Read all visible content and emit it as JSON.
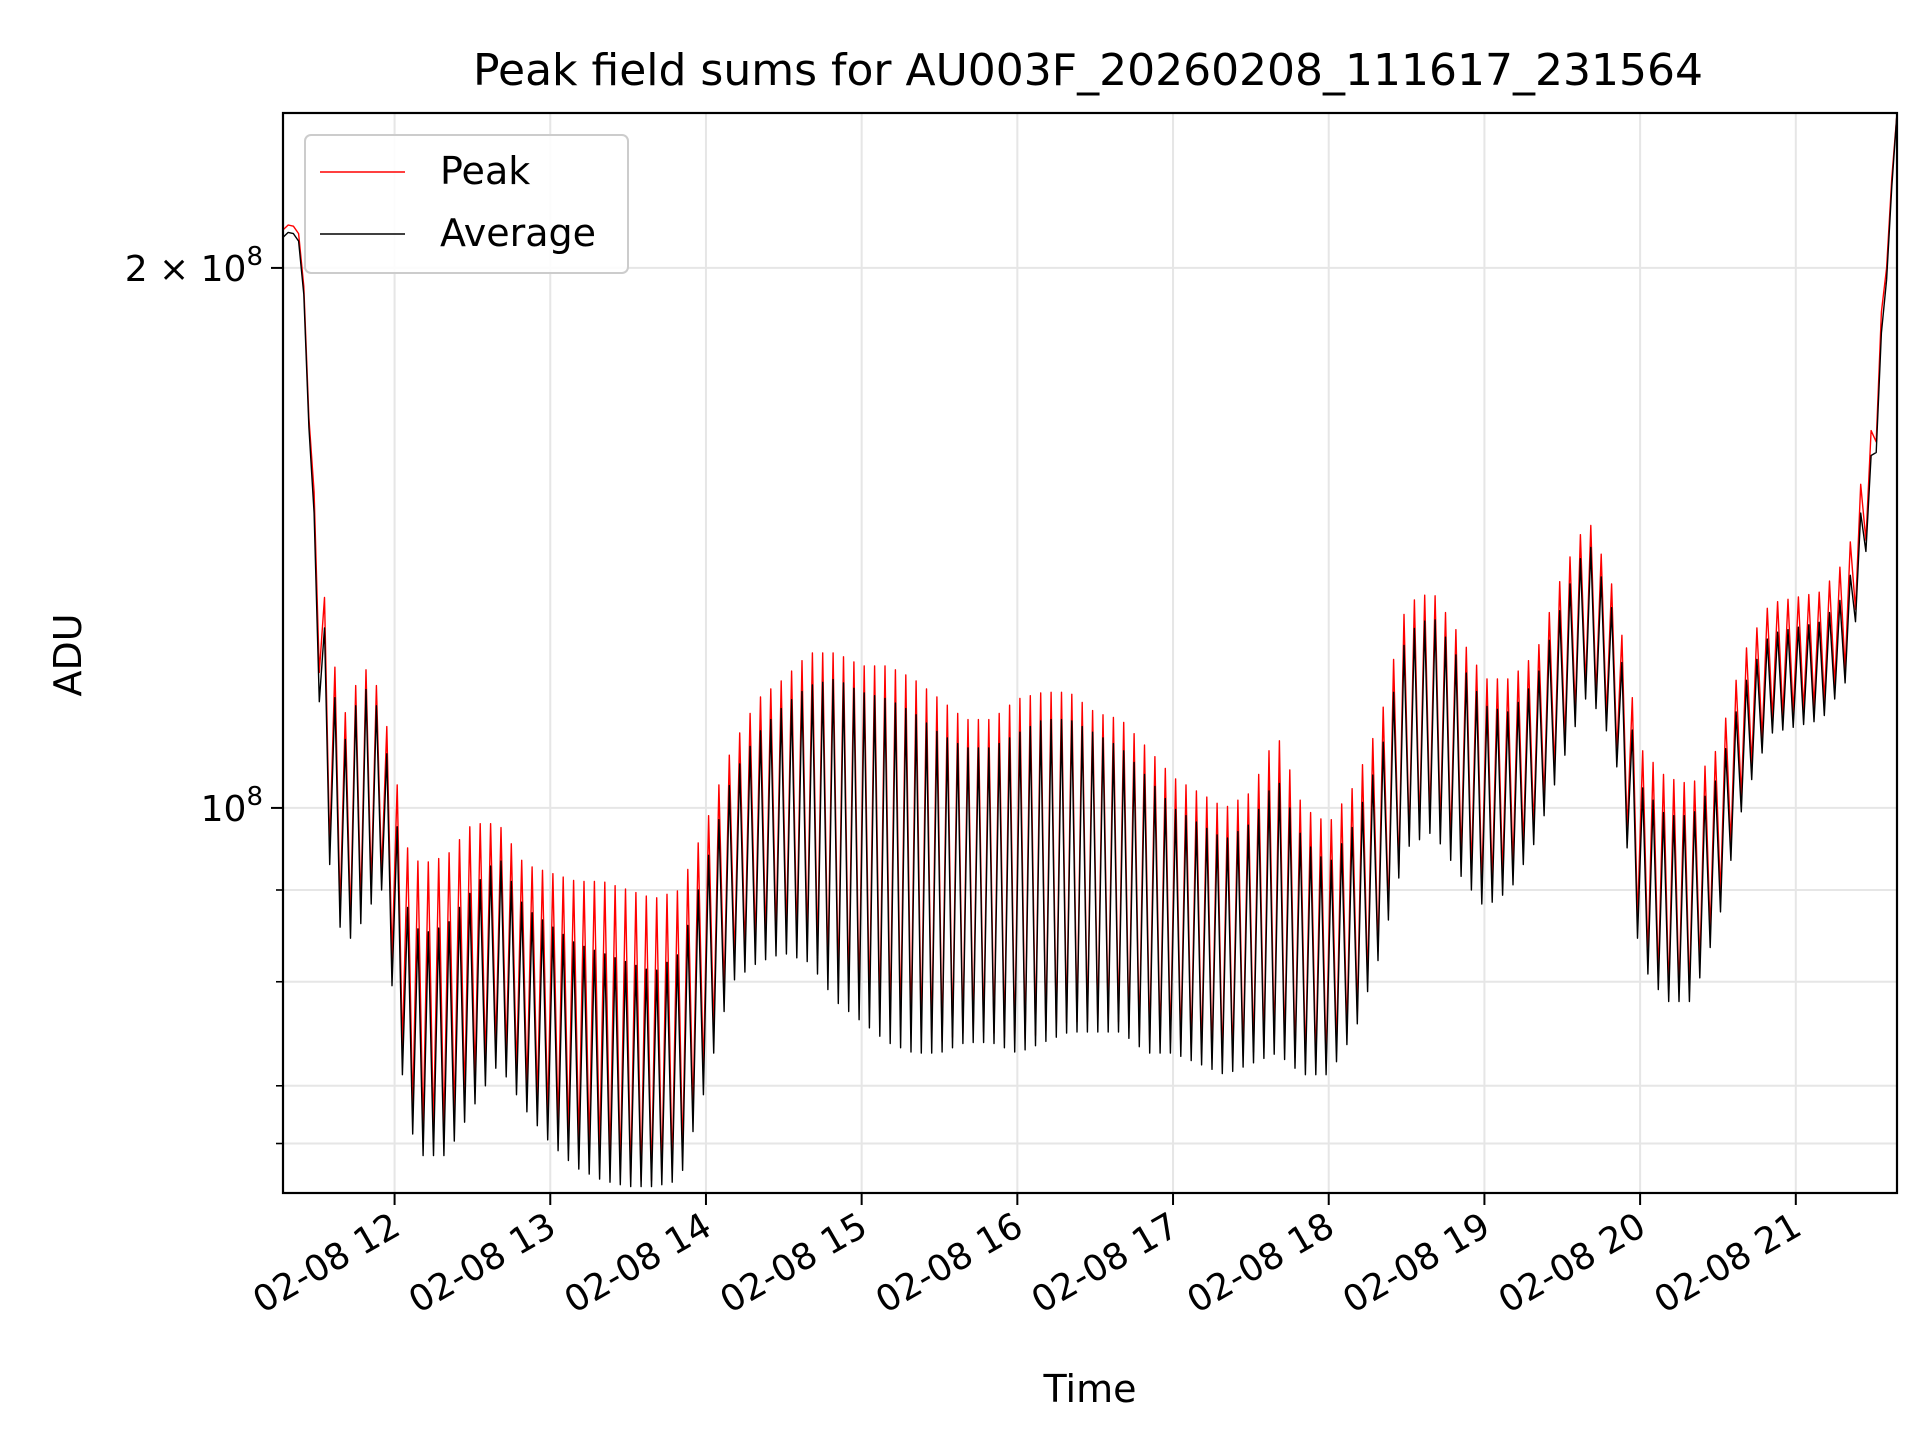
{
  "chart_data": {
    "type": "line",
    "title": "Peak field sums for AU003F_20260208_111617_231564",
    "xlabel": "Time",
    "ylabel": "ADU",
    "yscale": "log",
    "ylim": [
      61000000,
      244000000
    ],
    "xlim": [
      "02-08 11:17",
      "02-08 21:39"
    ],
    "x_ticks": [
      "02-08 12",
      "02-08 13",
      "02-08 14",
      "02-08 15",
      "02-08 16",
      "02-08 17",
      "02-08 18",
      "02-08 19",
      "02-08 20",
      "02-08 21"
    ],
    "y_ticks": [
      {
        "value": 100000000,
        "label": "10^8"
      },
      {
        "value": 200000000,
        "label": "2 × 10^8"
      }
    ],
    "y_minor_gridlines": [
      65000000,
      70000000,
      80000000,
      90000000
    ],
    "grid": true,
    "legend_position": "upper-left",
    "series": [
      {
        "name": "Peak",
        "color": "#ff0000",
        "envelope": {
          "x": [
            "02-08 11:17",
            "02-08 11:20",
            "02-08 11:24",
            "02-08 11:27",
            "02-08 11:30",
            "02-08 11:35",
            "02-08 11:40",
            "02-08 11:45",
            "02-08 11:50",
            "02-08 11:55",
            "02-08 12:00",
            "02-08 12:05",
            "02-08 12:10",
            "02-08 12:20",
            "02-08 12:30",
            "02-08 12:40",
            "02-08 12:50",
            "02-08 13:00",
            "02-08 13:10",
            "02-08 13:20",
            "02-08 13:30",
            "02-08 13:40",
            "02-08 13:50",
            "02-08 14:00",
            "02-08 14:10",
            "02-08 14:20",
            "02-08 14:30",
            "02-08 14:40",
            "02-08 14:50",
            "02-08 15:00",
            "02-08 15:10",
            "02-08 15:20",
            "02-08 15:30",
            "02-08 15:40",
            "02-08 15:50",
            "02-08 16:00",
            "02-08 16:10",
            "02-08 16:20",
            "02-08 16:30",
            "02-08 16:40",
            "02-08 16:50",
            "02-08 17:00",
            "02-08 17:10",
            "02-08 17:20",
            "02-08 17:30",
            "02-08 17:40",
            "02-08 17:50",
            "02-08 18:00",
            "02-08 18:10",
            "02-08 18:20",
            "02-08 18:30",
            "02-08 18:40",
            "02-08 18:50",
            "02-08 19:00",
            "02-08 19:10",
            "02-08 19:20",
            "02-08 19:30",
            "02-08 19:40",
            "02-08 19:50",
            "02-08 20:00",
            "02-08 20:10",
            "02-08 20:20",
            "02-08 20:30",
            "02-08 20:40",
            "02-08 20:50",
            "02-08 21:00",
            "02-08 21:10",
            "02-08 21:20",
            "02-08 21:30",
            "02-08 21:35",
            "02-08 21:39"
          ],
          "high": [
            210000000,
            212000000,
            208000000,
            170000000,
            140000000,
            125000000,
            112000000,
            117000000,
            120000000,
            115000000,
            105000000,
            95000000,
            93000000,
            94000000,
            98000000,
            98000000,
            93000000,
            92000000,
            91000000,
            91000000,
            90000000,
            89000000,
            90000000,
            98000000,
            108000000,
            115000000,
            118000000,
            122000000,
            122000000,
            120000000,
            120000000,
            118000000,
            115000000,
            112000000,
            112000000,
            115000000,
            116000000,
            116000000,
            113000000,
            112000000,
            108000000,
            104000000,
            102000000,
            100000000,
            102000000,
            110000000,
            100000000,
            98000000,
            103000000,
            112000000,
            130000000,
            132000000,
            125000000,
            118000000,
            118000000,
            122000000,
            135000000,
            145000000,
            132000000,
            108000000,
            104000000,
            103000000,
            108000000,
            122000000,
            130000000,
            131000000,
            132000000,
            138000000,
            165000000,
            205000000,
            244000000
          ],
          "low": [
            210000000,
            212000000,
            208000000,
            165000000,
            125000000,
            95000000,
            86000000,
            87000000,
            90000000,
            92000000,
            80000000,
            69000000,
            66000000,
            66000000,
            70000000,
            74000000,
            70000000,
            67000000,
            65000000,
            64000000,
            62000000,
            62000000,
            63000000,
            72000000,
            82000000,
            84000000,
            85000000,
            84000000,
            80000000,
            78000000,
            76000000,
            75000000,
            74000000,
            75000000,
            75000000,
            74000000,
            75000000,
            76000000,
            76000000,
            76000000,
            74000000,
            74000000,
            73000000,
            72000000,
            73000000,
            74000000,
            72000000,
            72000000,
            76000000,
            84000000,
            96000000,
            99000000,
            94000000,
            90000000,
            92000000,
            98000000,
            108000000,
            118000000,
            110000000,
            84000000,
            79000000,
            79000000,
            88000000,
            103000000,
            112000000,
            113000000,
            114000000,
            120000000,
            150000000,
            200000000,
            244000000
          ]
        }
      },
      {
        "name": "Average",
        "color": "#000000",
        "envelope": {
          "x": [
            "02-08 11:17",
            "02-08 11:20",
            "02-08 11:24",
            "02-08 11:27",
            "02-08 11:30",
            "02-08 11:35",
            "02-08 11:40",
            "02-08 11:45",
            "02-08 11:50",
            "02-08 11:55",
            "02-08 12:00",
            "02-08 12:05",
            "02-08 12:10",
            "02-08 12:20",
            "02-08 12:30",
            "02-08 12:40",
            "02-08 12:50",
            "02-08 13:00",
            "02-08 13:10",
            "02-08 13:20",
            "02-08 13:30",
            "02-08 13:40",
            "02-08 13:50",
            "02-08 14:00",
            "02-08 14:10",
            "02-08 14:20",
            "02-08 14:30",
            "02-08 14:40",
            "02-08 14:50",
            "02-08 15:00",
            "02-08 15:10",
            "02-08 15:20",
            "02-08 15:30",
            "02-08 15:40",
            "02-08 15:50",
            "02-08 16:00",
            "02-08 16:10",
            "02-08 16:20",
            "02-08 16:30",
            "02-08 16:40",
            "02-08 16:50",
            "02-08 17:00",
            "02-08 17:10",
            "02-08 17:20",
            "02-08 17:30",
            "02-08 17:40",
            "02-08 17:50",
            "02-08 18:00",
            "02-08 18:10",
            "02-08 18:20",
            "02-08 18:30",
            "02-08 18:40",
            "02-08 18:50",
            "02-08 19:00",
            "02-08 19:10",
            "02-08 19:20",
            "02-08 19:30",
            "02-08 19:40",
            "02-08 19:50",
            "02-08 20:00",
            "02-08 20:10",
            "02-08 20:20",
            "02-08 20:30",
            "02-08 20:40",
            "02-08 20:50",
            "02-08 21:00",
            "02-08 21:10",
            "02-08 21:20",
            "02-08 21:30",
            "02-08 21:35",
            "02-08 21:39"
          ],
          "high": [
            208000000,
            210000000,
            206000000,
            168000000,
            135000000,
            120000000,
            108000000,
            114000000,
            117000000,
            112000000,
            100000000,
            88000000,
            85000000,
            86000000,
            90000000,
            94000000,
            88000000,
            86000000,
            84000000,
            83000000,
            82000000,
            81000000,
            83000000,
            93000000,
            104000000,
            110000000,
            114000000,
            117000000,
            118000000,
            116000000,
            115000000,
            113000000,
            110000000,
            108000000,
            108000000,
            110000000,
            112000000,
            112000000,
            110000000,
            108000000,
            104000000,
            100000000,
            98000000,
            96000000,
            98000000,
            104000000,
            96000000,
            93000000,
            98000000,
            107000000,
            125000000,
            128000000,
            121000000,
            114000000,
            113000000,
            118000000,
            130000000,
            141000000,
            128000000,
            103000000,
            99000000,
            99000000,
            104000000,
            117000000,
            125000000,
            126000000,
            127000000,
            132000000,
            160000000,
            200000000,
            244000000
          ],
          "low": [
            208000000,
            210000000,
            206000000,
            163000000,
            120000000,
            93000000,
            84000000,
            85000000,
            88000000,
            90000000,
            77000000,
            67000000,
            64000000,
            64000000,
            68000000,
            72000000,
            68000000,
            65000000,
            63000000,
            62000000,
            61500000,
            61500000,
            62000000,
            70000000,
            80000000,
            82000000,
            83000000,
            82000000,
            78000000,
            76000000,
            74000000,
            73000000,
            73000000,
            74000000,
            74000000,
            73000000,
            74000000,
            75000000,
            75000000,
            75000000,
            73000000,
            73000000,
            72000000,
            71000000,
            72000000,
            73000000,
            71000000,
            71000000,
            75000000,
            83000000,
            95000000,
            97000000,
            92000000,
            88000000,
            90000000,
            96000000,
            106000000,
            116000000,
            108000000,
            82000000,
            78000000,
            78000000,
            86000000,
            101000000,
            110000000,
            111000000,
            112000000,
            118000000,
            148000000,
            197000000,
            244000000
          ]
        }
      }
    ]
  }
}
